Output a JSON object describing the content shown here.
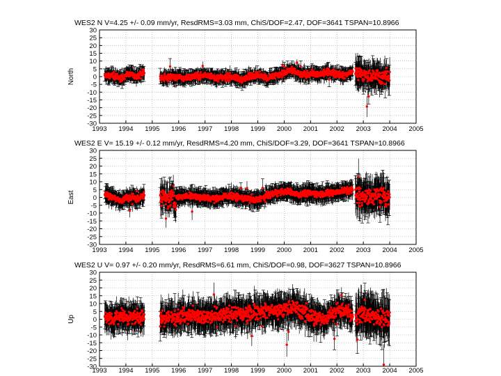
{
  "chart_data": [
    {
      "type": "scatter",
      "title": "WES2  N V=4.25 +/- 0.09 mm/yr,  ResdRMS=3.03 mm,  ChiS/DOF=2.47,  DOF=3641 TSPAN=10.8966",
      "ylabel": "North",
      "xlabel": "",
      "xlim": [
        1993,
        2005
      ],
      "ylim": [
        -30,
        30
      ],
      "x_ticks": [
        "1993",
        "1994",
        "1995",
        "1996",
        "1997",
        "1998",
        "1999",
        "2000",
        "2001",
        "2002",
        "2003",
        "2004",
        "2005"
      ],
      "y_ticks": [
        "30",
        "25",
        "20",
        "15",
        "10",
        "5",
        "0",
        "-5",
        "-10",
        "-15",
        "-20",
        "-25",
        "-30"
      ],
      "grid": true,
      "segments": [
        {
          "x": [
            1993.2,
            1994.7
          ],
          "level": [
            0,
            1,
            -1,
            2,
            0,
            3
          ],
          "spread": 3,
          "error": 4
        },
        {
          "x": [
            1995.3,
            1999.3
          ],
          "level": [
            -1,
            0,
            -1,
            0,
            1,
            -1,
            0,
            -2,
            1,
            0
          ],
          "spread": 3,
          "error": 4
        },
        {
          "x": [
            1999.3,
            2000.1
          ],
          "level": [
            -1,
            0,
            2,
            2
          ],
          "spread": 3,
          "error": 4
        },
        {
          "x": [
            2000.1,
            2002.6
          ],
          "level": [
            4,
            3,
            1,
            2,
            1,
            3,
            2,
            1,
            3
          ],
          "spread": 3,
          "error": 4
        },
        {
          "x": [
            2002.7,
            2004.0
          ],
          "level": [
            3,
            1,
            0,
            1,
            -1,
            0
          ],
          "spread": 6,
          "error": 8
        }
      ],
      "series_color": "#ff0000",
      "errorbar_color": "#000000"
    },
    {
      "type": "scatter",
      "title": "WES2  E V= 15.19 +/- 0.12 mm/yr,  ResdRMS=4.20 mm,  ChiS/DOF=3.29,  DOF=3641 TSPAN=10.8966",
      "ylabel": "East",
      "xlabel": "",
      "xlim": [
        1993,
        2005
      ],
      "ylim": [
        -30,
        30
      ],
      "x_ticks": [
        "1993",
        "1994",
        "1995",
        "1996",
        "1997",
        "1998",
        "1999",
        "2000",
        "2001",
        "2002",
        "2003",
        "2004",
        "2005"
      ],
      "y_ticks": [
        "30",
        "25",
        "20",
        "15",
        "10",
        "5",
        "0",
        "-5",
        "-10",
        "-15",
        "-20",
        "-25",
        "-30"
      ],
      "grid": true,
      "segments": [
        {
          "x": [
            1993.2,
            1994.7
          ],
          "level": [
            2,
            0,
            -2,
            0,
            -1,
            1
          ],
          "spread": 3,
          "error": 5
        },
        {
          "x": [
            1995.3,
            1995.9
          ],
          "level": [
            0,
            3,
            -3,
            2,
            -5
          ],
          "spread": 8,
          "error": 8
        },
        {
          "x": [
            1995.9,
            1999.3
          ],
          "level": [
            0,
            1,
            0,
            -1,
            1,
            0,
            -2,
            0
          ],
          "spread": 3,
          "error": 5
        },
        {
          "x": [
            1999.3,
            2002.6
          ],
          "level": [
            1,
            3,
            4,
            2,
            3,
            2,
            3,
            4,
            5
          ],
          "spread": 3,
          "error": 5
        },
        {
          "x": [
            2002.7,
            2004.0
          ],
          "level": [
            3,
            1,
            0,
            2,
            1,
            0
          ],
          "spread": 8,
          "error": 10
        }
      ],
      "series_color": "#ff0000",
      "errorbar_color": "#000000"
    },
    {
      "type": "scatter",
      "title": "WES2  U V= 0.97 +/- 0.20 mm/yr,  ResdRMS=6.61 mm,  ChiS/DOF=0.98,  DOF=3627 TSPAN=10.8966",
      "ylabel": "Up",
      "xlabel": "",
      "xlim": [
        1993,
        2005
      ],
      "ylim": [
        -30,
        30
      ],
      "x_ticks": [
        "1993",
        "1994",
        "1995",
        "1996",
        "1997",
        "1998",
        "1999",
        "2000",
        "2001",
        "2002",
        "2003",
        "2004",
        "2005"
      ],
      "y_ticks": [
        "30",
        "25",
        "20",
        "15",
        "10",
        "5",
        "0",
        "-5",
        "-10",
        "-15",
        "-20",
        "-25",
        "-30"
      ],
      "grid": true,
      "segments": [
        {
          "x": [
            1993.2,
            1994.7
          ],
          "level": [
            2,
            0,
            3,
            1,
            2,
            0
          ],
          "spread": 6,
          "error": 8
        },
        {
          "x": [
            1995.3,
            2001.5
          ],
          "level": [
            0,
            2,
            3,
            1,
            2,
            4,
            3,
            6,
            5,
            8,
            2,
            0
          ],
          "spread": 7,
          "error": 9
        },
        {
          "x": [
            2001.5,
            2002.6
          ],
          "level": [
            0,
            4,
            6,
            3
          ],
          "spread": 6,
          "error": 8
        },
        {
          "x": [
            2002.7,
            2004.0
          ],
          "level": [
            2,
            4,
            2,
            0,
            1
          ],
          "spread": 9,
          "error": 12
        }
      ],
      "series_color": "#ff0000",
      "errorbar_color": "#000000"
    }
  ]
}
